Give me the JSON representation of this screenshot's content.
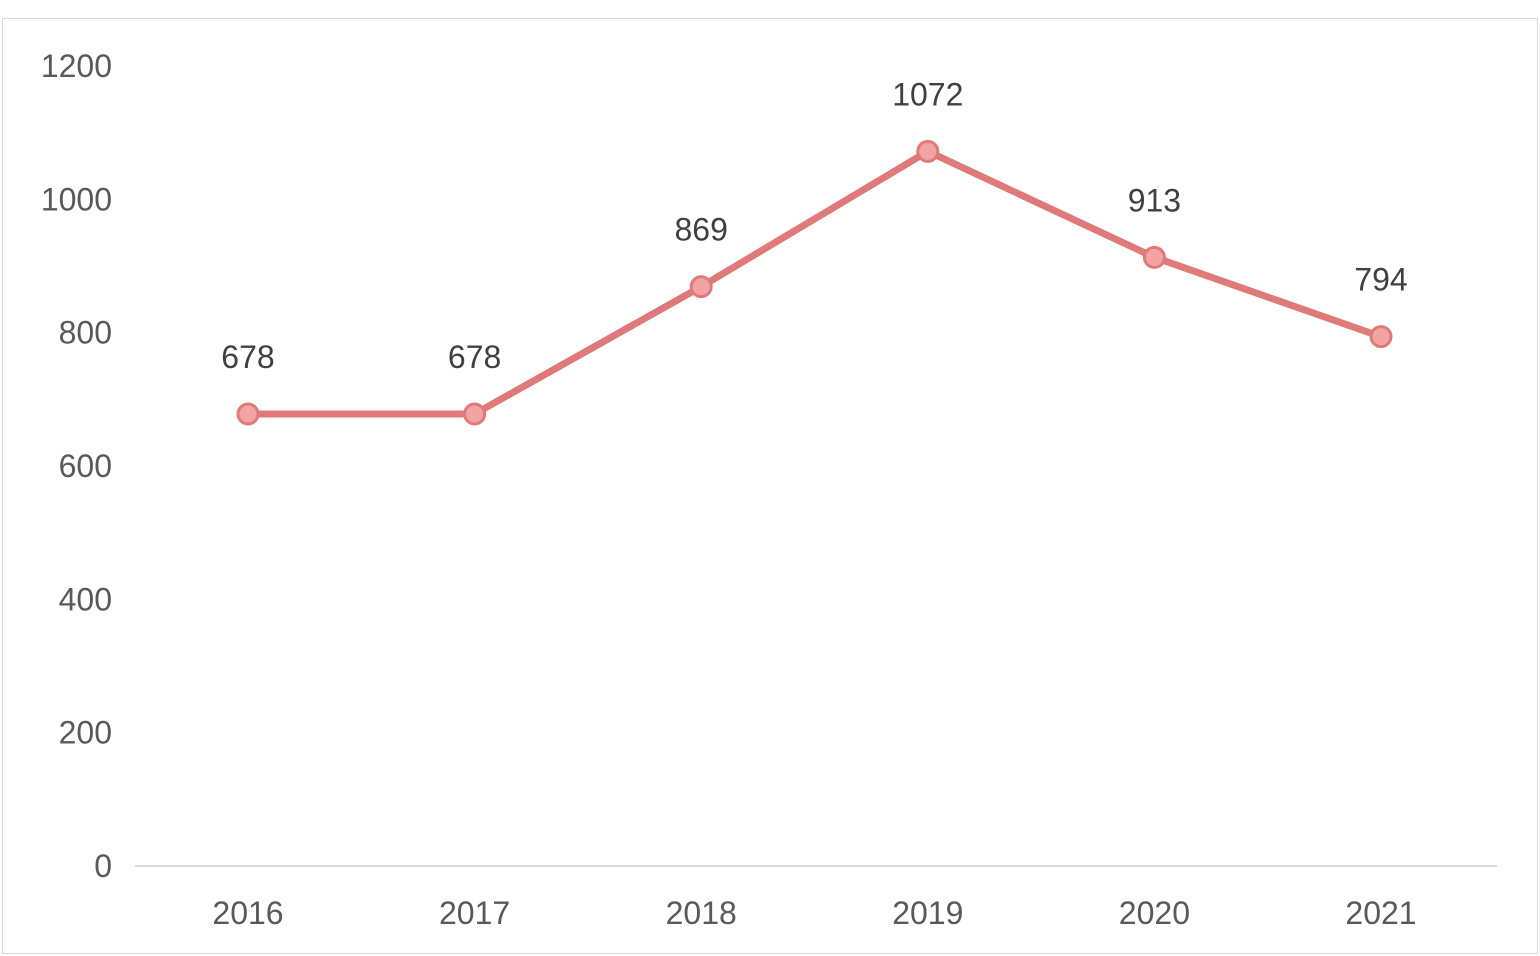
{
  "chart_data": {
    "type": "line",
    "categories": [
      "2016",
      "2017",
      "2018",
      "2019",
      "2020",
      "2021"
    ],
    "series": [
      {
        "values": [
          678,
          678,
          869,
          1072,
          913,
          794
        ],
        "color": "#e07a7a"
      }
    ],
    "title": "",
    "xlabel": "",
    "ylabel": "",
    "ylim": [
      0,
      1200
    ],
    "yticks": [
      "0",
      "200",
      "400",
      "600",
      "800",
      "1000",
      "1200"
    ],
    "data_labels": [
      "678",
      "678",
      "869",
      "1072",
      "913",
      "794"
    ],
    "grid": false,
    "legend": "none"
  }
}
